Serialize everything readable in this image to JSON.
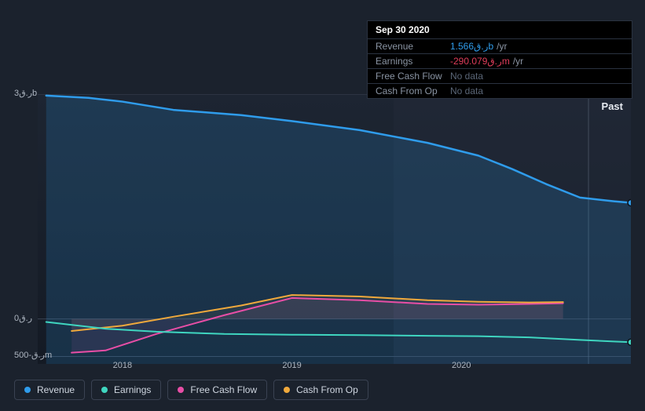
{
  "background_color": "#1b222d",
  "tooltip": {
    "date": "Sep 30 2020",
    "rows": [
      {
        "label": "Revenue",
        "value": "1.566",
        "unit": "ر.قb",
        "suffix": "/yr",
        "color": "#2f9ceb",
        "nodata": false
      },
      {
        "label": "Earnings",
        "value": "-290.079",
        "unit": "ر.قm",
        "suffix": "/yr",
        "color": "#e03d5b",
        "nodata": false
      },
      {
        "label": "Free Cash Flow",
        "value": "No data",
        "unit": "",
        "suffix": "",
        "color": "#5a6576",
        "nodata": true
      },
      {
        "label": "Cash From Op",
        "value": "No data",
        "unit": "",
        "suffix": "",
        "color": "#5a6576",
        "nodata": true
      }
    ]
  },
  "chart": {
    "past_label": "Past",
    "x_domain": [
      2017.5,
      2021.0
    ],
    "y_domain_millions": [
      -600,
      3000
    ],
    "y_ticks": [
      {
        "value_millions": 3000,
        "label": "ر.ق3b"
      },
      {
        "value_millions": 0,
        "label": "ر.ق0"
      },
      {
        "value_millions": -500,
        "label": "ر.ق-500m"
      }
    ],
    "x_ticks": [
      {
        "value": 2018,
        "label": "2018"
      },
      {
        "value": 2019,
        "label": "2019"
      },
      {
        "value": 2020,
        "label": "2020"
      }
    ],
    "gridline_color": "#3a4252",
    "plot_bg_gradient": {
      "top": "#1d2532",
      "bottom": "#141a24"
    },
    "highlight_band": {
      "from": 2019.6,
      "to": 2021.0,
      "color": "#222a38"
    },
    "hover_x": 2020.75,
    "hover_line_color": "#5a6576",
    "series": [
      {
        "name": "Free Cash Flow",
        "color": "#e84ea6",
        "stroke_width": 2,
        "fill_opacity": 0.1,
        "fill_to": 0,
        "points": [
          [
            2017.7,
            -450
          ],
          [
            2017.9,
            -420
          ],
          [
            2018.2,
            -200
          ],
          [
            2018.6,
            50
          ],
          [
            2019.0,
            280
          ],
          [
            2019.4,
            250
          ],
          [
            2019.8,
            200
          ],
          [
            2020.1,
            190
          ],
          [
            2020.4,
            200
          ],
          [
            2020.6,
            210
          ]
        ],
        "end_marker": false
      },
      {
        "name": "Cash From Op",
        "color": "#f0a93c",
        "stroke_width": 2,
        "fill_opacity": 0.08,
        "fill_to": 0,
        "points": [
          [
            2017.7,
            -160
          ],
          [
            2018.0,
            -90
          ],
          [
            2018.3,
            30
          ],
          [
            2018.7,
            180
          ],
          [
            2019.0,
            320
          ],
          [
            2019.4,
            300
          ],
          [
            2019.8,
            250
          ],
          [
            2020.1,
            230
          ],
          [
            2020.4,
            220
          ],
          [
            2020.6,
            225
          ]
        ],
        "end_marker": false
      },
      {
        "name": "Revenue",
        "color": "#2f9ceb",
        "stroke_width": 2.5,
        "fill_opacity": 0.18,
        "fill_to": -600,
        "points": [
          [
            2017.55,
            2980
          ],
          [
            2017.8,
            2950
          ],
          [
            2018.0,
            2900
          ],
          [
            2018.3,
            2790
          ],
          [
            2018.7,
            2720
          ],
          [
            2019.0,
            2640
          ],
          [
            2019.4,
            2520
          ],
          [
            2019.8,
            2350
          ],
          [
            2020.1,
            2180
          ],
          [
            2020.3,
            2000
          ],
          [
            2020.5,
            1800
          ],
          [
            2020.7,
            1620
          ],
          [
            2020.9,
            1570
          ],
          [
            2021.0,
            1550
          ]
        ],
        "end_marker": true
      },
      {
        "name": "Earnings",
        "color": "#3fd6c0",
        "stroke_width": 2,
        "fill_opacity": 0.0,
        "fill_to": 0,
        "points": [
          [
            2017.55,
            -40
          ],
          [
            2017.9,
            -130
          ],
          [
            2018.2,
            -170
          ],
          [
            2018.6,
            -200
          ],
          [
            2019.0,
            -210
          ],
          [
            2019.4,
            -215
          ],
          [
            2019.8,
            -225
          ],
          [
            2020.1,
            -230
          ],
          [
            2020.4,
            -245
          ],
          [
            2020.7,
            -280
          ],
          [
            2020.9,
            -300
          ],
          [
            2021.0,
            -310
          ]
        ],
        "end_marker": true
      }
    ]
  },
  "legend": {
    "items": [
      {
        "label": "Revenue",
        "color": "#2f9ceb"
      },
      {
        "label": "Earnings",
        "color": "#3fd6c0"
      },
      {
        "label": "Free Cash Flow",
        "color": "#e84ea6"
      },
      {
        "label": "Cash From Op",
        "color": "#f0a93c"
      }
    ]
  }
}
